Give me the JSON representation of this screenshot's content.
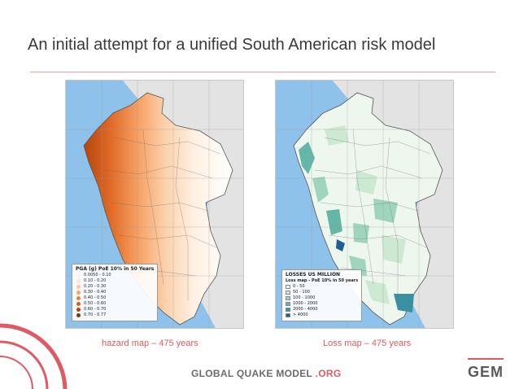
{
  "slide": {
    "title": "An initial attempt for a unified South American risk model"
  },
  "hazard_map": {
    "caption": "hazard map – 475 years",
    "legend_title": "PGA (g) PoE 10% in 50 Years",
    "legend_items": [
      {
        "label": "0.0050 - 0.10",
        "color": "#fff4ea"
      },
      {
        "label": "0.10 - 0.20",
        "color": "#fde4cc"
      },
      {
        "label": "0.20 - 0.30",
        "color": "#fbc89d"
      },
      {
        "label": "0.30 - 0.40",
        "color": "#f7a56a"
      },
      {
        "label": "0.40 - 0.50",
        "color": "#ef7f3c"
      },
      {
        "label": "0.50 - 0.60",
        "color": "#d85f1b"
      },
      {
        "label": "0.60 - 0.70",
        "color": "#b6450d"
      },
      {
        "label": "0.70 - 0.77",
        "color": "#8a3005"
      }
    ]
  },
  "loss_map": {
    "caption": "Loss map – 475 years",
    "legend_title": "LOSSES US MILLION",
    "legend_subtitle": "Loss map - PoE 10% in 50 years",
    "legend_items": [
      {
        "label": "0 - 50",
        "color": "#eef7ee"
      },
      {
        "label": "50 - 100",
        "color": "#cde9d2"
      },
      {
        "label": "100 - 1000",
        "color": "#9fd5be"
      },
      {
        "label": "1000 - 2000",
        "color": "#64b6a6"
      },
      {
        "label": "2000 - 4000",
        "color": "#3a8fa0"
      },
      {
        "label": "> 4000",
        "color": "#1f5f96"
      }
    ]
  },
  "colors": {
    "accent": "#e05a64",
    "ocean": "#8ec2ea",
    "land_neighbor": "#e3e3e3"
  },
  "footer": {
    "text": "GLOBAL QUAKE MODEL",
    "org": ".ORG",
    "logo": "GEM"
  }
}
